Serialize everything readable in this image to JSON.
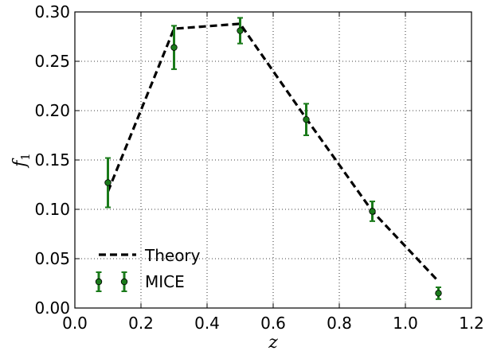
{
  "chart_data": {
    "type": "line",
    "title": "",
    "xlabel": "z",
    "ylabel": "f",
    "ylabel_subscript": "1",
    "xlim": [
      0.0,
      1.2
    ],
    "ylim": [
      0.0,
      0.3
    ],
    "xticks": [
      "0.0",
      "0.2",
      "0.4",
      "0.6",
      "0.8",
      "1.0",
      "1.2"
    ],
    "yticks": [
      "0.00",
      "0.05",
      "0.10",
      "0.15",
      "0.20",
      "0.25",
      "0.30"
    ],
    "grid": true,
    "legend_position": "lower-left",
    "series": [
      {
        "name": "Theory",
        "style": "dashed-line",
        "color": "#000000",
        "x": [
          0.1,
          0.3,
          0.5,
          0.7,
          0.9,
          1.1
        ],
        "y": [
          0.118,
          0.283,
          0.288,
          0.192,
          0.098,
          0.027
        ]
      },
      {
        "name": "MICE",
        "style": "errorbar-points",
        "color": "#1a7a1a",
        "x": [
          0.1,
          0.3,
          0.5,
          0.7,
          0.9,
          1.1
        ],
        "y": [
          0.127,
          0.264,
          0.281,
          0.191,
          0.098,
          0.015
        ],
        "yerr": [
          0.025,
          0.022,
          0.013,
          0.016,
          0.01,
          0.006
        ]
      }
    ]
  }
}
